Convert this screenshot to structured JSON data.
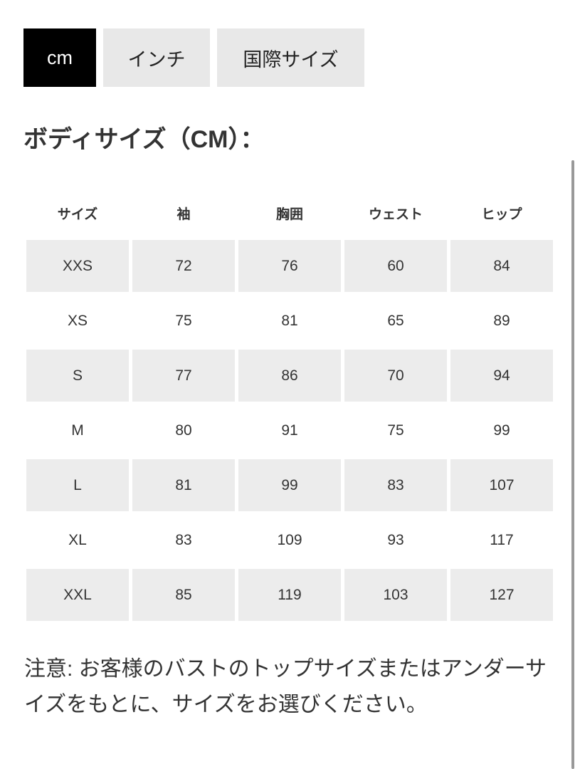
{
  "unit_tabs": [
    {
      "label": "cm",
      "active": true
    },
    {
      "label": "インチ",
      "active": false
    },
    {
      "label": "国際サイズ",
      "active": false
    }
  ],
  "section_title": "ボディサイズ（CM）：",
  "table": {
    "headers": [
      "サイズ",
      "袖",
      "胸囲",
      "ウェスト",
      "ヒップ"
    ],
    "rows": [
      [
        "XXS",
        "72",
        "76",
        "60",
        "84"
      ],
      [
        "XS",
        "75",
        "81",
        "65",
        "89"
      ],
      [
        "S",
        "77",
        "86",
        "70",
        "94"
      ],
      [
        "M",
        "80",
        "91",
        "75",
        "99"
      ],
      [
        "L",
        "81",
        "99",
        "83",
        "107"
      ],
      [
        "XL",
        "83",
        "109",
        "93",
        "117"
      ],
      [
        "XXL",
        "85",
        "119",
        "103",
        "127"
      ]
    ]
  },
  "note": "注意: お客様のバストのトップサイズまたはアンダーサイズをもとに、サイズをお選びください。",
  "colors": {
    "active_tab": "#000000",
    "inactive_tab": "#e8e8e8",
    "shaded_row": "#ececec"
  }
}
